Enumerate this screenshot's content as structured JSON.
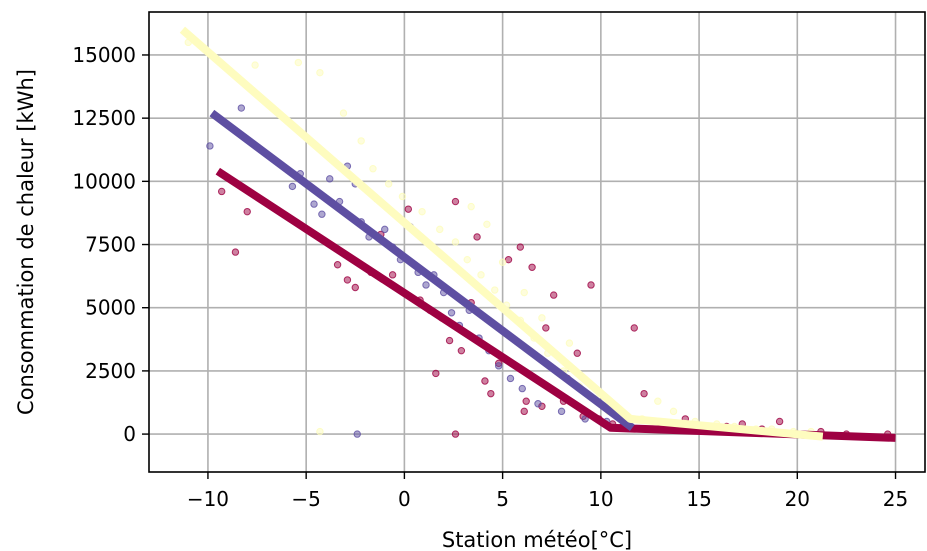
{
  "chart_data": {
    "type": "scatter",
    "title": "",
    "xlabel": "Station météo[°C]",
    "ylabel": "Consommation de chaleur [kWh]",
    "xlim": [
      -13,
      26.5
    ],
    "ylim": [
      -1500,
      16700
    ],
    "xticks": [
      -10,
      -5,
      0,
      5,
      10,
      15,
      20,
      25
    ],
    "yticks": [
      0,
      2500,
      5000,
      7500,
      10000,
      12500,
      15000
    ],
    "grid": true,
    "legend": "none",
    "series": [
      {
        "color": "#9e0142",
        "points": [
          [
            -9.3,
            9600
          ],
          [
            -8.6,
            7200
          ],
          [
            -8.0,
            8800
          ],
          [
            -3.4,
            6700
          ],
          [
            -2.9,
            6100
          ],
          [
            -2.5,
            5800
          ],
          [
            -1.7,
            6400
          ],
          [
            -1.2,
            7900
          ],
          [
            -0.6,
            6300
          ],
          [
            0.2,
            8900
          ],
          [
            0.8,
            5300
          ],
          [
            1.3,
            4900
          ],
          [
            1.6,
            2400
          ],
          [
            1.9,
            4600
          ],
          [
            2.3,
            3700
          ],
          [
            2.6,
            9200
          ],
          [
            2.9,
            3300
          ],
          [
            3.4,
            5200
          ],
          [
            3.7,
            7800
          ],
          [
            4.1,
            2100
          ],
          [
            4.4,
            1600
          ],
          [
            4.8,
            2800
          ],
          [
            5.3,
            6900
          ],
          [
            5.9,
            7400
          ],
          [
            6.2,
            1300
          ],
          [
            6.5,
            6600
          ],
          [
            7.2,
            4200
          ],
          [
            7.6,
            5500
          ],
          [
            8.3,
            2200
          ],
          [
            8.8,
            3200
          ],
          [
            9.5,
            5900
          ],
          [
            9.9,
            600
          ],
          [
            10.6,
            400
          ],
          [
            11.7,
            4200
          ],
          [
            12.2,
            1600
          ],
          [
            14.3,
            600
          ],
          [
            16.4,
            300
          ],
          [
            17.2,
            400
          ],
          [
            18.2,
            200
          ],
          [
            19.1,
            500
          ],
          [
            21.2,
            100
          ],
          [
            22.5,
            0
          ],
          [
            24.6,
            0
          ],
          [
            2.6,
            0
          ],
          [
            6.1,
            900
          ],
          [
            7.0,
            1100
          ],
          [
            8.1,
            1300
          ],
          [
            9.1,
            700
          ]
        ]
      },
      {
        "color": "#5e4fa2",
        "points": [
          [
            -9.9,
            11400
          ],
          [
            -8.3,
            12900
          ],
          [
            -5.7,
            9800
          ],
          [
            -5.3,
            10300
          ],
          [
            -4.6,
            9100
          ],
          [
            -4.2,
            8700
          ],
          [
            -3.8,
            10100
          ],
          [
            -3.3,
            9200
          ],
          [
            -2.9,
            10600
          ],
          [
            -2.5,
            9900
          ],
          [
            -2.2,
            8400
          ],
          [
            -1.8,
            7800
          ],
          [
            -1.4,
            9300
          ],
          [
            -1.0,
            8100
          ],
          [
            -0.6,
            7400
          ],
          [
            -0.2,
            6900
          ],
          [
            0.3,
            8200
          ],
          [
            0.7,
            6400
          ],
          [
            1.1,
            5900
          ],
          [
            1.5,
            6300
          ],
          [
            2.0,
            5600
          ],
          [
            2.4,
            4800
          ],
          [
            2.8,
            4300
          ],
          [
            3.3,
            4900
          ],
          [
            3.8,
            3800
          ],
          [
            4.3,
            3300
          ],
          [
            4.8,
            2700
          ],
          [
            5.4,
            2200
          ],
          [
            6.0,
            1800
          ],
          [
            6.8,
            1200
          ],
          [
            8.0,
            900
          ],
          [
            9.2,
            600
          ],
          [
            10.3,
            500
          ],
          [
            11.1,
            300
          ],
          [
            -2.4,
            0
          ]
        ]
      },
      {
        "color": "#fdfcbb",
        "points": [
          [
            -11.0,
            15500
          ],
          [
            -7.6,
            14600
          ],
          [
            -5.4,
            14700
          ],
          [
            -4.3,
            14300
          ],
          [
            -3.1,
            12700
          ],
          [
            -2.2,
            11600
          ],
          [
            -1.6,
            10500
          ],
          [
            -0.8,
            9900
          ],
          [
            -0.1,
            9400
          ],
          [
            0.9,
            8800
          ],
          [
            1.8,
            8100
          ],
          [
            2.6,
            7600
          ],
          [
            3.2,
            6900
          ],
          [
            3.9,
            6300
          ],
          [
            4.6,
            5700
          ],
          [
            5.2,
            5100
          ],
          [
            5.9,
            4500
          ],
          [
            6.6,
            3800
          ],
          [
            7.3,
            3200
          ],
          [
            8.1,
            2500
          ],
          [
            8.9,
            1900
          ],
          [
            9.7,
            1400
          ],
          [
            10.4,
            900
          ],
          [
            11.3,
            700
          ],
          [
            12.1,
            600
          ],
          [
            12.9,
            1300
          ],
          [
            13.7,
            900
          ],
          [
            14.8,
            500
          ],
          [
            15.9,
            400
          ],
          [
            16.8,
            300
          ],
          [
            17.9,
            200
          ],
          [
            18.7,
            200
          ],
          [
            19.8,
            100
          ],
          [
            20.7,
            100
          ],
          [
            3.4,
            9000
          ],
          [
            4.2,
            8300
          ],
          [
            5.0,
            6800
          ],
          [
            6.1,
            5600
          ],
          [
            7.0,
            4600
          ],
          [
            8.4,
            3600
          ],
          [
            -4.3,
            100
          ]
        ]
      }
    ],
    "fits": [
      {
        "color": "#9e0142",
        "points": [
          [
            -9.5,
            10400
          ],
          [
            10.5,
            250
          ],
          [
            25,
            -150
          ]
        ]
      },
      {
        "color": "#5e4fa2",
        "points": [
          [
            -9.8,
            12700
          ],
          [
            11.6,
            250
          ]
        ]
      },
      {
        "color": "#fefcbf",
        "points": [
          [
            -11.3,
            16000
          ],
          [
            11.5,
            600
          ],
          [
            21.3,
            -100
          ]
        ]
      }
    ]
  }
}
